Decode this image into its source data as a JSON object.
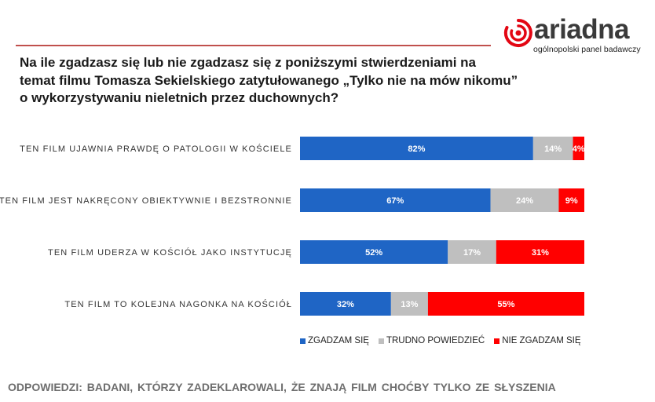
{
  "logo": {
    "word": "ariadna",
    "tagline": "ogólnopolski panel badawczy"
  },
  "question": {
    "lines": [
      "Na ile zgadzasz się lub nie zgadzasz się z poniższymi stwierdzeniami na",
      "temat filmu Tomasza Sekielskiego zatytułowanego „Tylko nie na mów nikomu”",
      "o wykorzystywaniu nieletnich przez duchownych?"
    ]
  },
  "chart_data": {
    "type": "bar",
    "orientation": "horizontal",
    "stacked": true,
    "categories": [
      "TEN FILM UJAWNIA PRAWDĘ O PATOLOGII W KOŚCIELE",
      "TEN FILM JEST NAKRĘCONY OBIEKTYWNIE I BEZSTRONNIE",
      "TEN FILM UDERZA W KOŚCIÓŁ JAKO INSTYTUCJĘ",
      "TEN FILM TO KOLEJNA NAGONKA NA KOŚCIÓŁ"
    ],
    "series": [
      {
        "name": "ZGADZAM SIĘ",
        "color": "#1f65c5",
        "values": [
          82,
          67,
          52,
          32
        ],
        "labels": [
          "82%",
          "67%",
          "52%",
          "32%"
        ]
      },
      {
        "name": "TRUDNO POWIEDZIEĆ",
        "color": "#bfbfbf",
        "values": [
          14,
          24,
          17,
          13
        ],
        "labels": [
          "14%",
          "24%",
          "17%",
          "13%"
        ]
      },
      {
        "name": "NIE ZGADZAM SIĘ",
        "color": "#ff0000",
        "values": [
          4,
          9,
          31,
          55
        ],
        "labels": [
          "4%",
          "9%",
          "31%",
          "55%"
        ]
      }
    ],
    "xlim": [
      0,
      100
    ],
    "grid": false,
    "legend_position": "bottom"
  },
  "footnote": "ODPOWIEDZI:  BADANI, KTÓRZY  ZADEKLAROWALI, ŻE ZNAJĄ FILM CHOĆBY  TYLKO ZE SŁYSZENIA"
}
